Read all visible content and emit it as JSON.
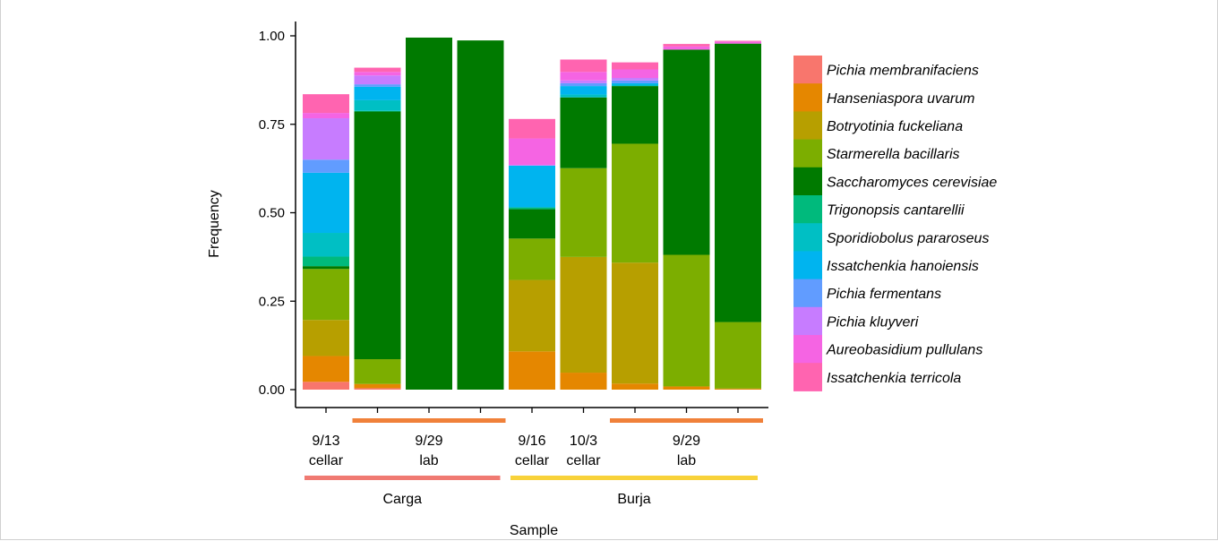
{
  "chart_data": {
    "type": "bar",
    "stacked": true,
    "xlabel": "Sample",
    "ylabel": "Frequency",
    "ylim": [
      0,
      1.05
    ],
    "yticks": [
      "0.00",
      "0.25",
      "0.50",
      "0.75",
      "1.00"
    ],
    "grid": false,
    "legend_position": "right",
    "species": [
      {
        "name": "Pichia membranifaciens",
        "color": "#F8766D"
      },
      {
        "name": "Hanseniaspora uvarum",
        "color": "#E58700"
      },
      {
        "name": "Botryotinia fuckeliana",
        "color": "#B79F00"
      },
      {
        "name": "Starmerella bacillaris",
        "color": "#7CAE00"
      },
      {
        "name": "Saccharomyces cerevisiae",
        "color": "#007A00"
      },
      {
        "name": "Trigonopsis cantarellii",
        "color": "#00BA7C"
      },
      {
        "name": "Sporidiobolus pararoseus",
        "color": "#00BFC4"
      },
      {
        "name": "Issatchenkia hanoiensis",
        "color": "#00B4EF"
      },
      {
        "name": "Pichia fermentans",
        "color": "#619CFF"
      },
      {
        "name": "Pichia kluyveri",
        "color": "#C77CFF"
      },
      {
        "name": "Aureobasidium pullulans",
        "color": "#F564E3"
      },
      {
        "name": "Issatchenkia terricola",
        "color": "#FF64B0"
      }
    ],
    "bars": [
      {
        "stack": [
          0.022,
          0.073,
          0.102,
          0.144,
          0.008,
          0.027,
          0.067,
          0.17,
          0.037,
          0.117,
          0.015,
          0.053
        ]
      },
      {
        "stack": [
          0.004,
          0.012,
          0.0,
          0.07,
          0.7,
          0.002,
          0.03,
          0.038,
          0.007,
          0.025,
          0.01,
          0.012
        ]
      },
      {
        "stack": [
          0,
          0,
          0,
          0,
          0.995,
          0,
          0,
          0,
          0,
          0,
          0,
          0
        ]
      },
      {
        "stack": [
          0,
          0,
          0,
          0,
          0.987,
          0,
          0,
          0,
          0,
          0,
          0,
          0
        ]
      },
      {
        "stack": [
          0.0,
          0.108,
          0.202,
          0.117,
          0.083,
          0.005,
          0.0,
          0.118,
          0.0,
          0.002,
          0.075,
          0.055
        ]
      },
      {
        "stack": [
          0.0,
          0.048,
          0.327,
          0.251,
          0.2,
          0.0,
          0.008,
          0.024,
          0.008,
          0.008,
          0.024,
          0.035
        ]
      },
      {
        "stack": [
          0.0,
          0.017,
          0.342,
          0.336,
          0.163,
          0.0,
          0.004,
          0.004,
          0.008,
          0.007,
          0.024,
          0.02
        ]
      },
      {
        "stack": [
          0.0,
          0.009,
          0.0,
          0.372,
          0.58,
          0.0,
          0.0,
          0.0,
          0.0,
          0.0,
          0.009,
          0.007
        ]
      },
      {
        "stack": [
          0.0,
          0.003,
          0.0,
          0.188,
          0.787,
          0.0,
          0.0,
          0.0,
          0.0,
          0.0,
          0.006,
          0.002
        ]
      }
    ],
    "sample_labels": [
      {
        "line1": "9/13",
        "line2": "cellar",
        "from": 0,
        "to": 0
      },
      {
        "line1": "9/29",
        "line2": "lab",
        "from": 1,
        "to": 3
      },
      {
        "line1": "9/16",
        "line2": "cellar",
        "from": 4,
        "to": 4
      },
      {
        "line1": "10/3",
        "line2": "cellar",
        "from": 5,
        "to": 5
      },
      {
        "line1": "9/29",
        "line2": "lab",
        "from": 6,
        "to": 8
      }
    ],
    "lab_brackets": [
      {
        "from": 1,
        "to": 3,
        "color": "#F0813A"
      },
      {
        "from": 6,
        "to": 8,
        "color": "#F0813A"
      }
    ],
    "groups": [
      {
        "name": "Carga",
        "from": 0,
        "to": 3,
        "color": "#F07A72"
      },
      {
        "name": "Burja",
        "from": 4,
        "to": 8,
        "color": "#F8D23A"
      }
    ]
  }
}
